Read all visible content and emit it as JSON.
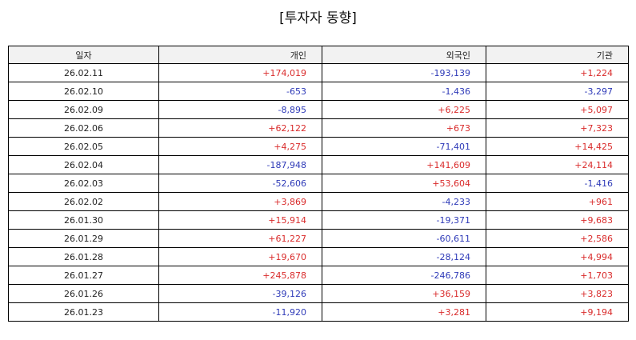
{
  "title": "[투자자 동향]",
  "columns": [
    "일자",
    "개인",
    "외국인",
    "기관"
  ],
  "colors": {
    "positive": "#d92b2b",
    "negative": "#2e3ab8"
  },
  "rows": [
    [
      "26.02.11",
      "+174,019",
      "-193,139",
      "+1,224"
    ],
    [
      "26.02.10",
      "-653",
      "-1,436",
      "-3,297"
    ],
    [
      "26.02.09",
      "-8,895",
      "+6,225",
      "+5,097"
    ],
    [
      "26.02.06",
      "+62,122",
      "+673",
      "+7,323"
    ],
    [
      "26.02.05",
      "+4,275",
      "-71,401",
      "+14,425"
    ],
    [
      "26.02.04",
      "-187,948",
      "+141,609",
      "+24,114"
    ],
    [
      "26.02.03",
      "-52,606",
      "+53,604",
      "-1,416"
    ],
    [
      "26.02.02",
      "+3,869",
      "-4,233",
      "+961"
    ],
    [
      "26.01.30",
      "+15,914",
      "-19,371",
      "+9,683"
    ],
    [
      "26.01.29",
      "+61,227",
      "-60,611",
      "+2,586"
    ],
    [
      "26.01.28",
      "+19,670",
      "-28,124",
      "+4,994"
    ],
    [
      "26.01.27",
      "+245,878",
      "-246,786",
      "+1,703"
    ],
    [
      "26.01.26",
      "-39,126",
      "+36,159",
      "+3,823"
    ],
    [
      "26.01.23",
      "-11,920",
      "+3,281",
      "+9,194"
    ]
  ]
}
